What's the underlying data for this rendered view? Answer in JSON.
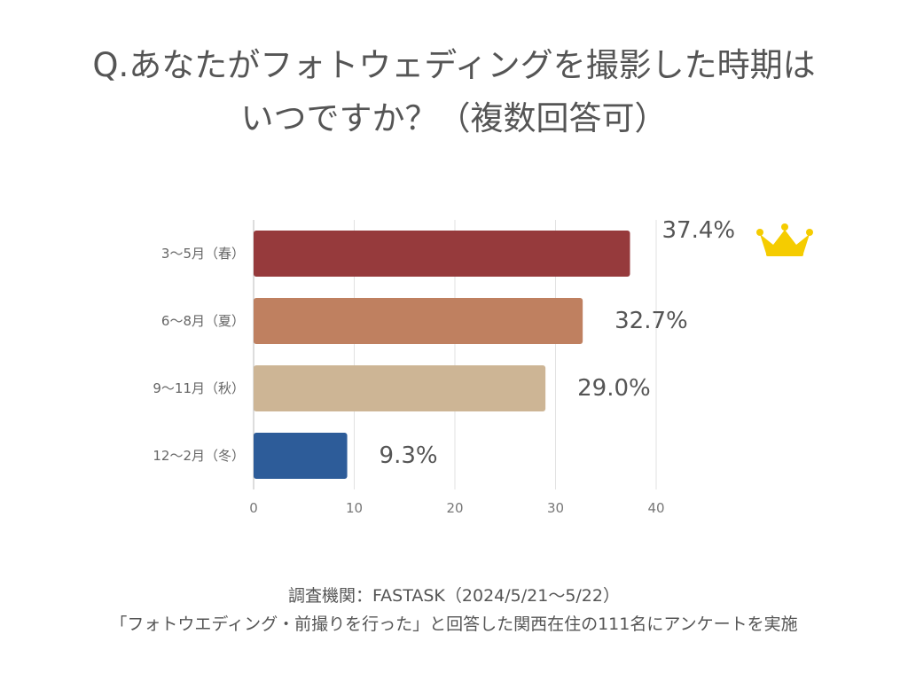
{
  "title": {
    "line1": "Q.あなたがフォトウェディングを撮影した時期は",
    "line2": "いつですか？（複数回答可）"
  },
  "chart_data": {
    "type": "bar",
    "orientation": "horizontal",
    "categories": [
      "3～5月（春）",
      "6～8月（夏）",
      "9～11月（秋）",
      "12～2月（冬）"
    ],
    "values": [
      37.4,
      32.7,
      29.0,
      9.3
    ],
    "value_labels": [
      "37.4%",
      "32.7%",
      "29.0%",
      "9.3%"
    ],
    "colors": [
      "#963A3C",
      "#BF8060",
      "#CDB595",
      "#2D5C99"
    ],
    "xlim": [
      0,
      40
    ],
    "xticks": [
      "0",
      "10",
      "20",
      "30",
      "40"
    ],
    "grid": true,
    "top_rank_marker": "crown-icon",
    "crown_color": "#F5CC00"
  },
  "footer": {
    "line1": "調査機関：FASTASK（2024/5/21～5/22）",
    "line2": "「フォトウエディング・前撮りを行った」と回答した関西在住の111名にアンケートを実施"
  }
}
